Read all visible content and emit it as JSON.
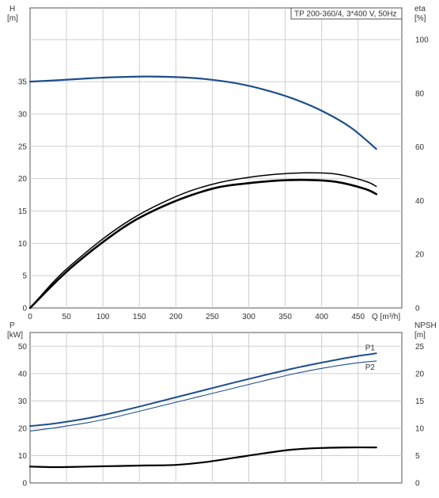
{
  "colors": {
    "blue": "#1f4e8c",
    "black": "#000000",
    "grid": "#cfcfcf",
    "frame": "#555555",
    "thin": "#888888"
  },
  "chart_data": [
    {
      "type": "line",
      "title": "TP 200-360/4, 3*400 V, 50Hz",
      "xlabel": "Q [m³/h]",
      "x_ticks": [
        0,
        50,
        100,
        150,
        200,
        250,
        300,
        350,
        400,
        450
      ],
      "xlim": [
        0,
        510
      ],
      "grid": true,
      "left_axis": {
        "unit_line1": "H",
        "unit_line2": "[m]",
        "ticks": [
          0,
          5,
          10,
          15,
          20,
          25,
          30,
          35
        ],
        "ylim": [
          0,
          41.5
        ]
      },
      "right_axis": {
        "unit_line1": "eta",
        "unit_line2": "[%]",
        "ticks": [
          0,
          20,
          40,
          60,
          80,
          100
        ],
        "ylim": [
          0,
          100
        ]
      },
      "series": [
        {
          "axis": "left",
          "color": "#1f4e8c",
          "width": 2.2,
          "x": [
            0,
            35,
            80,
            120,
            160,
            200,
            240,
            280,
            320,
            360,
            400,
            440,
            475
          ],
          "y": [
            35.0,
            35.2,
            35.5,
            35.7,
            35.8,
            35.7,
            35.4,
            34.8,
            33.8,
            32.4,
            30.5,
            27.9,
            24.6
          ]
        },
        {
          "axis": "left",
          "color": "#000000",
          "width": 1.5,
          "x": [
            0,
            35,
            60,
            100,
            140,
            180,
            220,
            260,
            300,
            340,
            380,
            420,
            460,
            475
          ],
          "y": [
            0,
            4.4,
            7.0,
            10.7,
            13.8,
            16.2,
            18.1,
            19.4,
            20.2,
            20.7,
            20.9,
            20.7,
            19.6,
            18.8
          ]
        },
        {
          "axis": "left",
          "color": "#000000",
          "width": 2.6,
          "x": [
            0,
            35,
            60,
            100,
            140,
            180,
            220,
            260,
            300,
            340,
            380,
            420,
            460,
            475
          ],
          "y": [
            0,
            4.0,
            6.6,
            10.2,
            13.3,
            15.6,
            17.4,
            18.7,
            19.3,
            19.7,
            19.8,
            19.5,
            18.4,
            17.6
          ]
        }
      ]
    },
    {
      "type": "line",
      "x_ticks": [
        0,
        50,
        100,
        150,
        200,
        250,
        300,
        350,
        400,
        450
      ],
      "xlim": [
        0,
        510
      ],
      "grid": true,
      "left_axis": {
        "unit_line1": "P",
        "unit_line2": "[kW]",
        "ticks": [
          0,
          10,
          20,
          30,
          40,
          50
        ],
        "ylim": [
          0,
          55
        ]
      },
      "right_axis": {
        "unit_line1": "NPSH",
        "unit_line2": "[m]",
        "ticks": [
          0,
          5,
          10,
          15,
          20,
          25
        ],
        "ylim": [
          0,
          27.5
        ]
      },
      "series": [
        {
          "name": "P1",
          "axis": "left",
          "color": "#1f4e8c",
          "width": 2.0,
          "x": [
            0,
            35,
            80,
            120,
            160,
            200,
            240,
            280,
            320,
            360,
            400,
            440,
            475
          ],
          "y": [
            20.8,
            21.8,
            23.7,
            26.0,
            28.6,
            31.3,
            34.0,
            36.7,
            39.3,
            41.8,
            44.0,
            46.0,
            47.4
          ]
        },
        {
          "name": "P2",
          "axis": "left",
          "color": "#1f4e8c",
          "width": 1.1,
          "x": [
            0,
            35,
            80,
            120,
            160,
            200,
            240,
            280,
            320,
            360,
            400,
            440,
            475
          ],
          "y": [
            19.0,
            20.2,
            22.1,
            24.3,
            26.9,
            29.5,
            32.1,
            34.7,
            37.3,
            39.8,
            41.9,
            43.6,
            44.6
          ]
        },
        {
          "axis": "right",
          "color": "#000000",
          "width": 2.2,
          "x": [
            0,
            35,
            80,
            120,
            160,
            200,
            240,
            280,
            320,
            360,
            400,
            440,
            475
          ],
          "y": [
            3.0,
            2.9,
            3.0,
            3.1,
            3.2,
            3.3,
            3.8,
            4.6,
            5.4,
            6.1,
            6.4,
            6.5,
            6.5
          ]
        }
      ]
    }
  ]
}
